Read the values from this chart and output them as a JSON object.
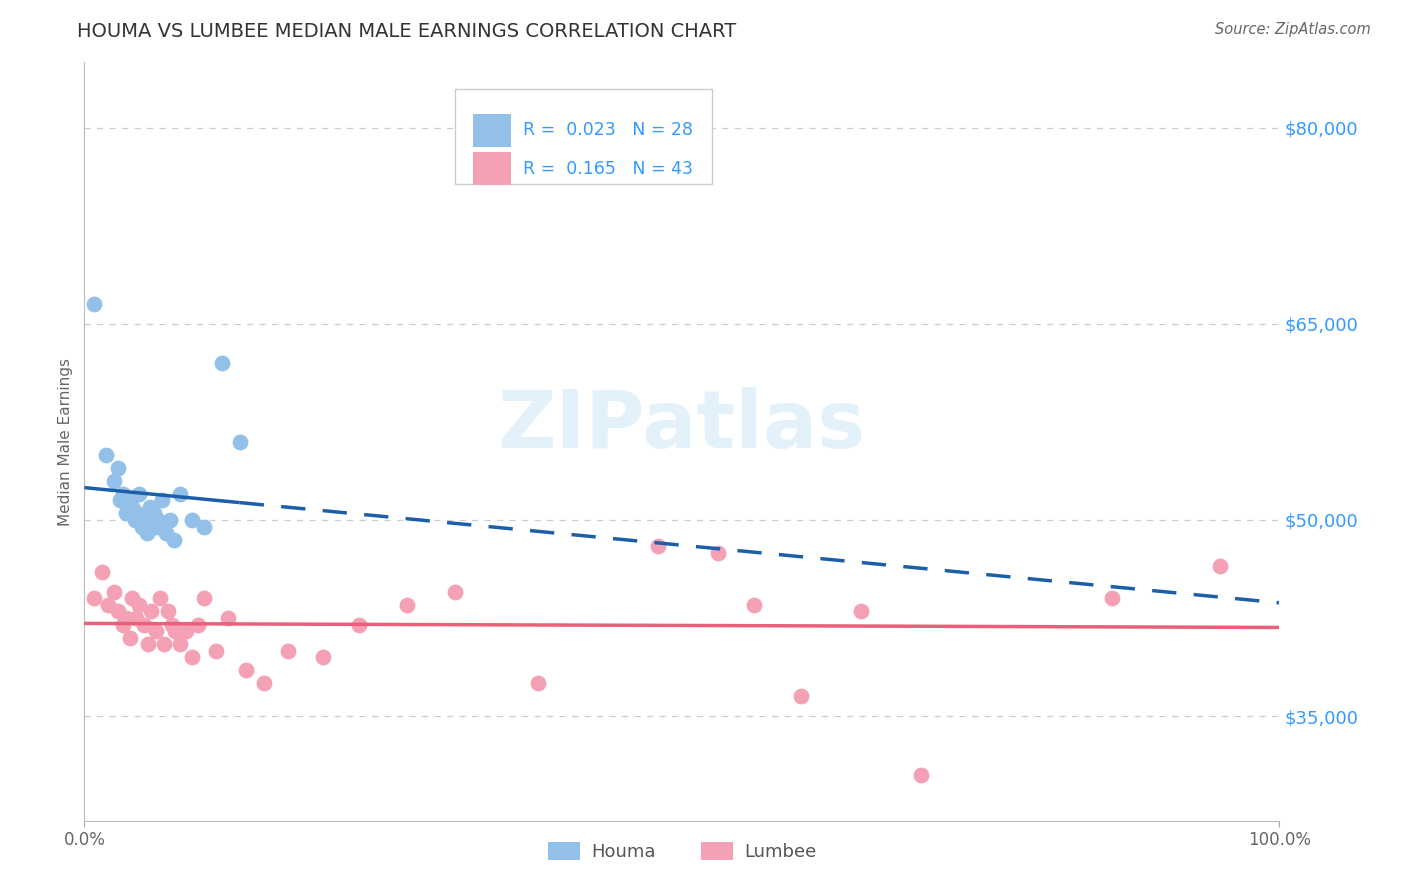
{
  "title": "HOUMA VS LUMBEE MEDIAN MALE EARNINGS CORRELATION CHART",
  "source": "Source: ZipAtlas.com",
  "ylabel": "Median Male Earnings",
  "xlim": [
    0,
    1.0
  ],
  "ylim": [
    27000,
    85000
  ],
  "xtick_labels": [
    "0.0%",
    "100.0%"
  ],
  "ytick_values": [
    35000,
    50000,
    65000,
    80000
  ],
  "ytick_labels": [
    "$35,000",
    "$50,000",
    "$65,000",
    "$80,000"
  ],
  "houma_R": "0.023",
  "houma_N": "28",
  "lumbee_R": "0.165",
  "lumbee_N": "43",
  "houma_color": "#92c0e8",
  "lumbee_color": "#f4a0b5",
  "houma_line_color": "#1a5fa8",
  "lumbee_line_color": "#e8607a",
  "houma_x": [
    0.008,
    0.018,
    0.025,
    0.028,
    0.03,
    0.032,
    0.035,
    0.038,
    0.04,
    0.042,
    0.044,
    0.046,
    0.048,
    0.05,
    0.052,
    0.055,
    0.058,
    0.06,
    0.062,
    0.065,
    0.068,
    0.072,
    0.075,
    0.08,
    0.09,
    0.1,
    0.115,
    0.13
  ],
  "houma_y": [
    66500,
    55000,
    53000,
    54000,
    51500,
    52000,
    50500,
    51500,
    51000,
    50000,
    50500,
    52000,
    49500,
    50000,
    49000,
    51000,
    50500,
    49500,
    50000,
    51500,
    49000,
    50000,
    48500,
    52000,
    50000,
    49500,
    62000,
    56000
  ],
  "lumbee_x": [
    0.008,
    0.015,
    0.02,
    0.025,
    0.028,
    0.032,
    0.035,
    0.038,
    0.04,
    0.043,
    0.046,
    0.05,
    0.053,
    0.056,
    0.06,
    0.063,
    0.067,
    0.07,
    0.073,
    0.076,
    0.08,
    0.085,
    0.09,
    0.095,
    0.1,
    0.11,
    0.12,
    0.135,
    0.15,
    0.17,
    0.2,
    0.23,
    0.27,
    0.31,
    0.38,
    0.48,
    0.53,
    0.56,
    0.6,
    0.65,
    0.7,
    0.86,
    0.95
  ],
  "lumbee_y": [
    44000,
    46000,
    43500,
    44500,
    43000,
    42000,
    42500,
    41000,
    44000,
    42500,
    43500,
    42000,
    40500,
    43000,
    41500,
    44000,
    40500,
    43000,
    42000,
    41500,
    40500,
    41500,
    39500,
    42000,
    44000,
    40000,
    42500,
    38500,
    37500,
    40000,
    39500,
    42000,
    43500,
    44500,
    37500,
    48000,
    47500,
    43500,
    36500,
    43000,
    30500,
    44000,
    46500
  ],
  "watermark_text": "ZIPatlas",
  "background_color": "#ffffff",
  "title_color": "#333333",
  "axis_label_color": "#666666",
  "ytick_color": "#3399ff",
  "grid_color": "#cccccc",
  "legend_text_color": "#3399ff"
}
